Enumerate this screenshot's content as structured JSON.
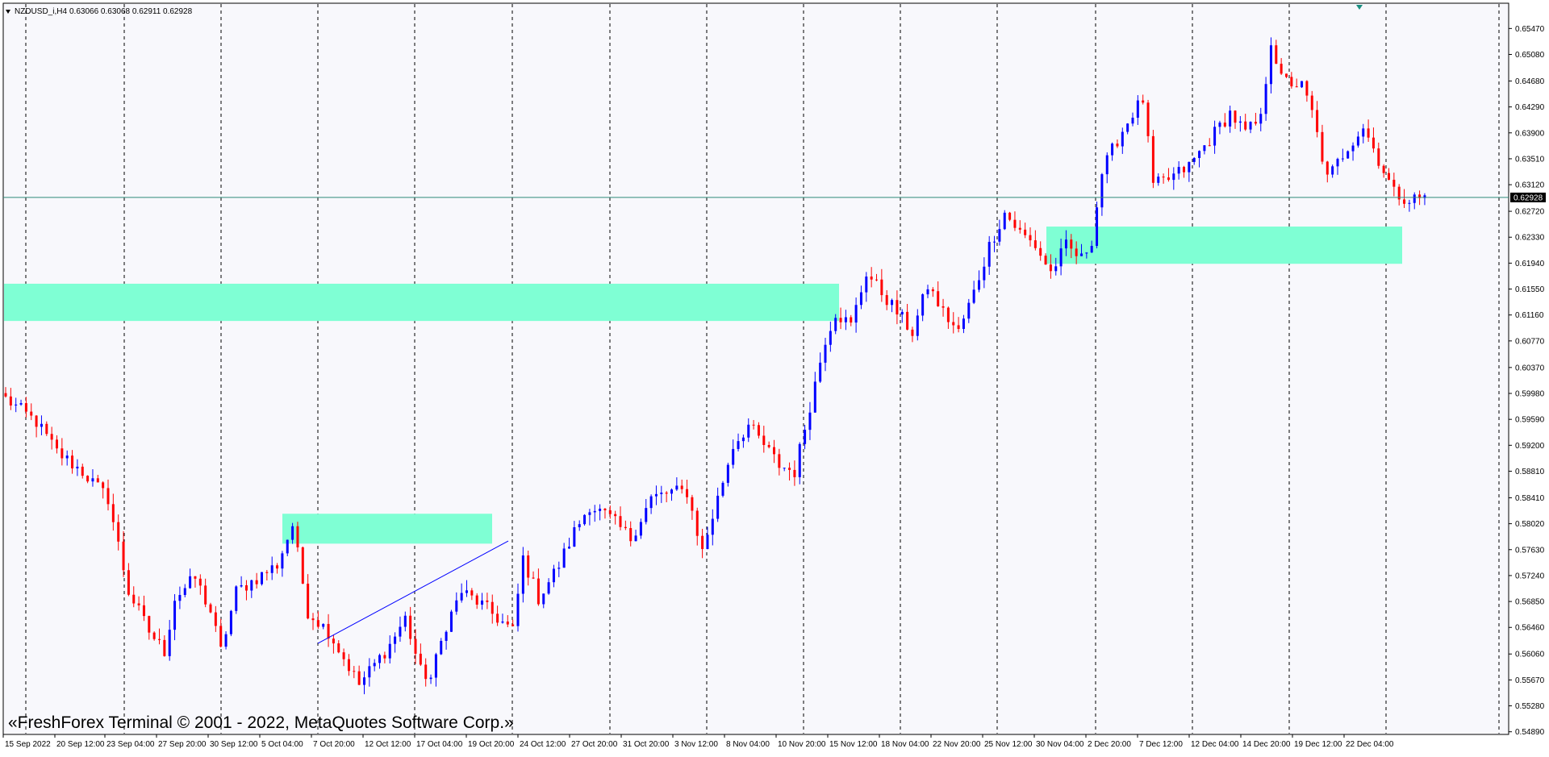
{
  "header": {
    "symbol_label": "NZDUSD_i,H4",
    "ohlc_label": "0.63066 0.63068 0.62911 0.62928"
  },
  "watermark": "«FreshForex Terminal © 2001 - 2022, MetaQuotes Software Corp.»",
  "colors": {
    "background": "#f8f8fc",
    "bull": "#0000ff",
    "bear": "#ff0000",
    "zone": "#7fffd4",
    "current_price_line": "#2e8b7a",
    "trendline": "#0000ff",
    "grid": "#000000"
  },
  "chart_data": {
    "type": "candlestick",
    "symbol": "NZDUSD_i",
    "timeframe": "H4",
    "ylim": [
      0.5485,
      0.6585
    ],
    "y_ticks": [
      "0.65470",
      "0.65080",
      "0.64680",
      "0.64290",
      "0.63900",
      "0.63510",
      "0.63120",
      "0.62720",
      "0.62330",
      "0.61940",
      "0.61550",
      "0.61160",
      "0.60770",
      "0.60370",
      "0.59980",
      "0.59590",
      "0.59200",
      "0.58810",
      "0.58410",
      "0.58020",
      "0.57630",
      "0.57240",
      "0.56850",
      "0.56460",
      "0.56060",
      "0.55670",
      "0.55280",
      "0.54890"
    ],
    "x_ticks": [
      "15 Sep 2022",
      "20 Sep 12:00",
      "23 Sep 04:00",
      "27 Sep 20:00",
      "30 Sep 12:00",
      "5 Oct 04:00",
      "7 Oct 20:00",
      "12 Oct 12:00",
      "17 Oct 04:00",
      "19 Oct 20:00",
      "24 Oct 12:00",
      "27 Oct 20:00",
      "31 Oct 20:00",
      "3 Nov 12:00",
      "8 Nov 04:00",
      "10 Nov 20:00",
      "15 Nov 12:00",
      "18 Nov 04:00",
      "22 Nov 20:00",
      "25 Nov 12:00",
      "30 Nov 04:00",
      "2 Dec 20:00",
      "7 Dec 12:00",
      "12 Dec 04:00",
      "14 Dec 20:00",
      "19 Dec 12:00",
      "22 Dec 04:00"
    ],
    "current_price": "0.62928",
    "close_path": [
      [
        0,
        0.599
      ],
      [
        6,
        0.5955
      ],
      [
        10,
        0.591
      ],
      [
        15,
        0.588
      ],
      [
        20,
        0.584
      ],
      [
        24,
        0.57
      ],
      [
        28,
        0.564
      ],
      [
        31,
        0.561
      ],
      [
        33,
        0.569
      ],
      [
        37,
        0.572
      ],
      [
        40,
        0.567
      ],
      [
        42,
        0.561
      ],
      [
        45,
        0.57
      ],
      [
        49,
        0.572
      ],
      [
        53,
        0.574
      ],
      [
        56,
        0.58
      ],
      [
        59,
        0.567
      ],
      [
        63,
        0.564
      ],
      [
        66,
        0.56
      ],
      [
        69,
        0.556
      ],
      [
        72,
        0.559
      ],
      [
        75,
        0.562
      ],
      [
        78,
        0.566
      ],
      [
        81,
        0.558
      ],
      [
        83,
        0.557
      ],
      [
        86,
        0.565
      ],
      [
        89,
        0.57
      ],
      [
        93,
        0.568
      ],
      [
        96,
        0.566
      ],
      [
        99,
        0.564
      ],
      [
        101,
        0.575
      ],
      [
        104,
        0.569
      ],
      [
        108,
        0.574
      ],
      [
        111,
        0.579
      ],
      [
        114,
        0.583
      ],
      [
        118,
        0.581
      ],
      [
        122,
        0.578
      ],
      [
        126,
        0.584
      ],
      [
        130,
        0.585
      ],
      [
        133,
        0.585
      ],
      [
        136,
        0.576
      ],
      [
        139,
        0.584
      ],
      [
        142,
        0.592
      ],
      [
        145,
        0.595
      ],
      [
        148,
        0.592
      ],
      [
        151,
        0.589
      ],
      [
        154,
        0.588
      ],
      [
        157,
        0.598
      ],
      [
        160,
        0.608
      ],
      [
        162,
        0.612
      ],
      [
        165,
        0.61
      ],
      [
        168,
        0.618
      ],
      [
        171,
        0.615
      ],
      [
        174,
        0.612
      ],
      [
        177,
        0.609
      ],
      [
        180,
        0.616
      ],
      [
        183,
        0.612
      ],
      [
        186,
        0.609
      ],
      [
        189,
        0.615
      ],
      [
        192,
        0.622
      ],
      [
        195,
        0.627
      ],
      [
        198,
        0.624
      ],
      [
        201,
        0.622
      ],
      [
        204,
        0.618
      ],
      [
        207,
        0.622
      ],
      [
        210,
        0.62
      ],
      [
        212,
        0.623
      ],
      [
        214,
        0.633
      ],
      [
        217,
        0.638
      ],
      [
        220,
        0.642
      ],
      [
        222,
        0.644
      ],
      [
        224,
        0.631
      ],
      [
        227,
        0.632
      ],
      [
        231,
        0.634
      ],
      [
        235,
        0.638
      ],
      [
        239,
        0.642
      ],
      [
        242,
        0.639
      ],
      [
        245,
        0.641
      ],
      [
        247,
        0.653
      ],
      [
        249,
        0.647
      ],
      [
        253,
        0.646
      ],
      [
        255,
        0.642
      ],
      [
        258,
        0.632
      ],
      [
        262,
        0.637
      ],
      [
        265,
        0.64
      ],
      [
        268,
        0.635
      ],
      [
        271,
        0.63
      ],
      [
        274,
        0.629
      ],
      [
        277,
        0.6293
      ]
    ]
  },
  "x_axis_title_note": "",
  "scrollbar_marker": ""
}
